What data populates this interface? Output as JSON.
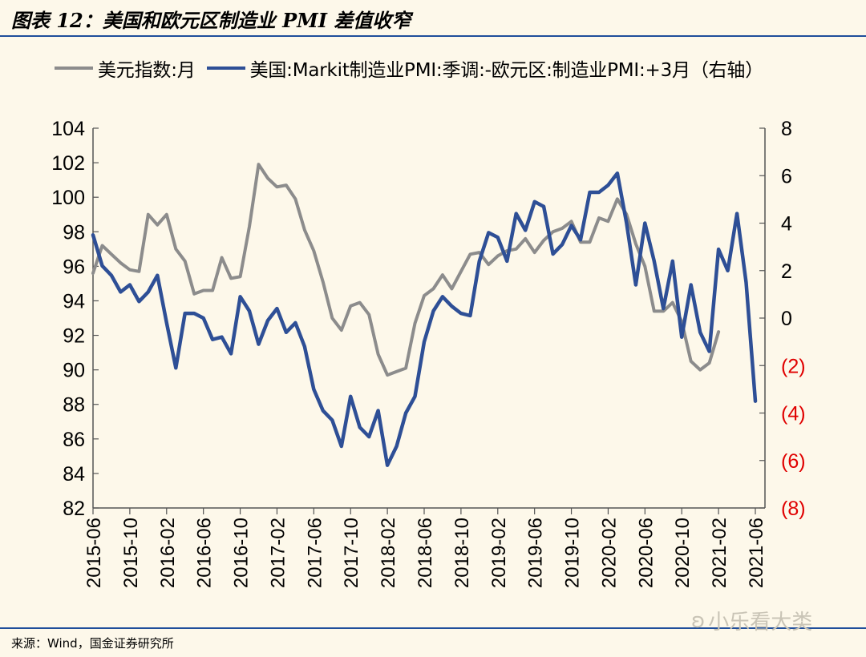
{
  "header": {
    "title": "图表 12：美国和欧元区制造业 PMI 差值收窄"
  },
  "footer": {
    "source": "来源：Wind，国金证券研究所"
  },
  "watermark": {
    "text": "小乐看大类",
    "icon": "wechat-icon"
  },
  "colors": {
    "dxy": "#8c8c8c",
    "pmi": "#2e4f96",
    "right_negative_ticks": "#e00000",
    "rule": "#1f4e9b",
    "background": "#fdf8ea"
  },
  "chart_data": {
    "type": "line",
    "legend": [
      "美元指数:月",
      "美国:Markit制造业PMI:季调:-欧元区:制造业PMI:+3月（右轴）"
    ],
    "legend_placement": "top",
    "grid": false,
    "x_tick_labels": [
      "2015-06",
      "2015-10",
      "2016-02",
      "2016-06",
      "2016-10",
      "2017-02",
      "2017-06",
      "2017-10",
      "2018-02",
      "2018-06",
      "2018-10",
      "2019-02",
      "2019-06",
      "2019-10",
      "2020-02",
      "2020-06",
      "2020-10",
      "2021-02",
      "2021-06"
    ],
    "x_start": "2015-06",
    "x_end": "2021-06",
    "y_left": {
      "range": [
        82,
        104
      ],
      "ticks": [
        "82",
        "84",
        "86",
        "88",
        "90",
        "92",
        "94",
        "96",
        "98",
        "100",
        "102",
        "104"
      ]
    },
    "y_right": {
      "range": [
        -8,
        8
      ],
      "ticks": [
        "(8)",
        "(6)",
        "(4)",
        "(2)",
        "0",
        "2",
        "4",
        "6",
        "8"
      ]
    },
    "series": [
      {
        "name": "美元指数:月",
        "axis": "left",
        "start": "2015-06",
        "values": [
          95.6,
          97.2,
          96.7,
          96.2,
          95.8,
          95.7,
          99.0,
          98.4,
          99.0,
          97.0,
          96.3,
          94.4,
          94.6,
          94.6,
          96.5,
          95.3,
          95.4,
          98.3,
          101.9,
          101.1,
          100.6,
          100.7,
          99.9,
          98.1,
          96.9,
          95.1,
          93.0,
          92.3,
          93.7,
          93.9,
          93.2,
          90.9,
          89.7,
          89.9,
          90.1,
          92.7,
          94.3,
          94.7,
          95.5,
          94.7,
          95.7,
          96.7,
          96.8,
          96.1,
          96.6,
          96.9,
          97.0,
          97.6,
          96.8,
          97.5,
          98.0,
          98.2,
          98.6,
          97.4,
          97.4,
          98.8,
          98.6,
          99.9,
          99.0,
          97.3,
          96.0,
          93.4,
          93.4,
          93.9,
          92.8,
          90.5,
          90.0,
          90.4,
          92.2
        ]
      },
      {
        "name": "美国:Markit制造业PMI:季调:-欧元区:制造业PMI:+3月（右轴）",
        "axis": "right",
        "start": "2015-06",
        "values": [
          3.5,
          2.2,
          1.8,
          1.1,
          1.4,
          0.7,
          1.1,
          1.8,
          -0.2,
          -2.1,
          0.2,
          0.2,
          0.0,
          -0.9,
          -0.8,
          -1.5,
          0.9,
          0.3,
          -1.1,
          -0.1,
          0.4,
          -0.6,
          -0.2,
          -1.2,
          -3.0,
          -3.9,
          -4.3,
          -5.4,
          -3.3,
          -4.6,
          -5.0,
          -3.9,
          -6.2,
          -5.4,
          -4.0,
          -3.3,
          -1.0,
          0.3,
          0.9,
          0.5,
          0.2,
          0.1,
          2.4,
          3.6,
          3.4,
          2.4,
          4.4,
          3.7,
          4.9,
          4.7,
          2.7,
          3.1,
          3.9,
          3.3,
          5.3,
          5.3,
          5.6,
          6.1,
          4.0,
          1.4,
          4.0,
          2.4,
          0.4,
          2.4,
          -0.8,
          1.4,
          -0.6,
          -1.4,
          2.9,
          2.0,
          4.4,
          1.5,
          -3.5
        ]
      }
    ]
  }
}
